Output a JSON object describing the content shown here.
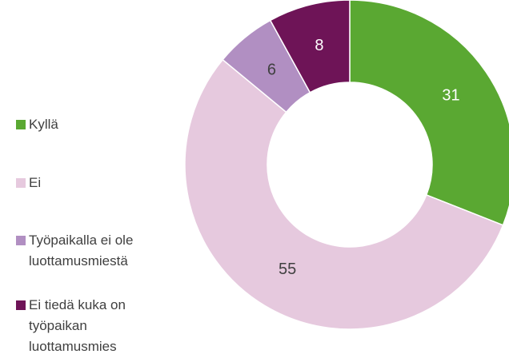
{
  "chart_data": {
    "type": "pie",
    "donut": true,
    "categories": [
      "Kyllä",
      "Ei",
      "Työpaikalla ei ole luottamusmiestä",
      "Ei tiedä kuka on työpaikan luottamusmies"
    ],
    "values": [
      31,
      55,
      6,
      8
    ],
    "colors": [
      "#5aa832",
      "#e6c9de",
      "#b18fc2",
      "#6e1457"
    ]
  }
}
